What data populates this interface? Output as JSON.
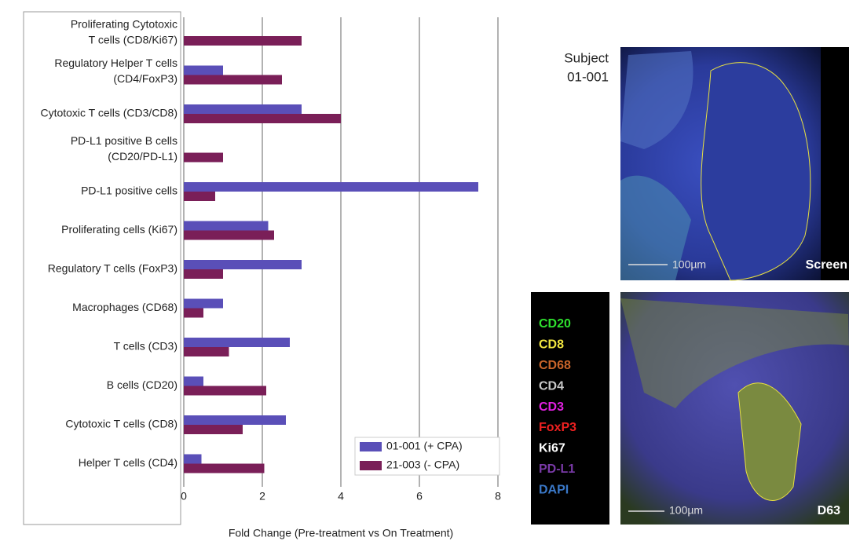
{
  "chart_data": {
    "type": "bar",
    "orientation": "horizontal",
    "x_label": "Fold Change (Pre-treatment vs On Treatment)",
    "categories": [
      [
        "Proliferating Cytotoxic",
        "T cells (CD8/Ki67)"
      ],
      [
        "Regulatory Helper T cells",
        "(CD4/FoxP3)"
      ],
      [
        "Cytotoxic T cells (CD3/CD8)"
      ],
      [
        "PD-L1 positive B cells",
        "(CD20/PD-L1)"
      ],
      [
        "PD-L1 positive cells"
      ],
      [
        "Proliferating cells (Ki67)"
      ],
      [
        "Regulatory T cells (FoxP3)"
      ],
      [
        "Macrophages (CD68)"
      ],
      [
        "T cells (CD3)"
      ],
      [
        "B cells (CD20)"
      ],
      [
        "Cytotoxic T cells (CD8)"
      ],
      [
        "Helper T cells (CD4)"
      ]
    ],
    "series": [
      {
        "name": "01-001 (+ CPA)",
        "color": "#5a4fb8",
        "values": [
          null,
          1.0,
          3.0,
          null,
          7.5,
          2.15,
          3.0,
          1.0,
          2.7,
          0.5,
          2.6,
          0.45
        ]
      },
      {
        "name": "21-003 (- CPA)",
        "color": "#7a1f58",
        "values": [
          3.0,
          2.5,
          4.0,
          1.0,
          0.8,
          2.3,
          1.0,
          0.5,
          1.15,
          2.1,
          1.5,
          2.05
        ]
      }
    ],
    "xlim": [
      0,
      8
    ],
    "xticks": [
      0,
      2,
      4,
      6,
      8
    ],
    "grid": true,
    "legend": "lower right"
  },
  "panels": {
    "subject": [
      "Subject",
      "01-001"
    ],
    "scale_bar": "100µm",
    "top_label": "Screen",
    "bottom_label": "D63",
    "stains": [
      {
        "name": "CD20",
        "color": "#2ee02e"
      },
      {
        "name": "CD8",
        "color": "#f2e640"
      },
      {
        "name": "CD68",
        "color": "#c8642a"
      },
      {
        "name": "CD4",
        "color": "#c8c8c8"
      },
      {
        "name": "CD3",
        "color": "#e020e0"
      },
      {
        "name": "FoxP3",
        "color": "#ee2020"
      },
      {
        "name": "Ki67",
        "color": "#ffffff"
      },
      {
        "name": "PD-L1",
        "color": "#7a3aa8"
      },
      {
        "name": "DAPI",
        "color": "#3a78c8"
      }
    ]
  }
}
